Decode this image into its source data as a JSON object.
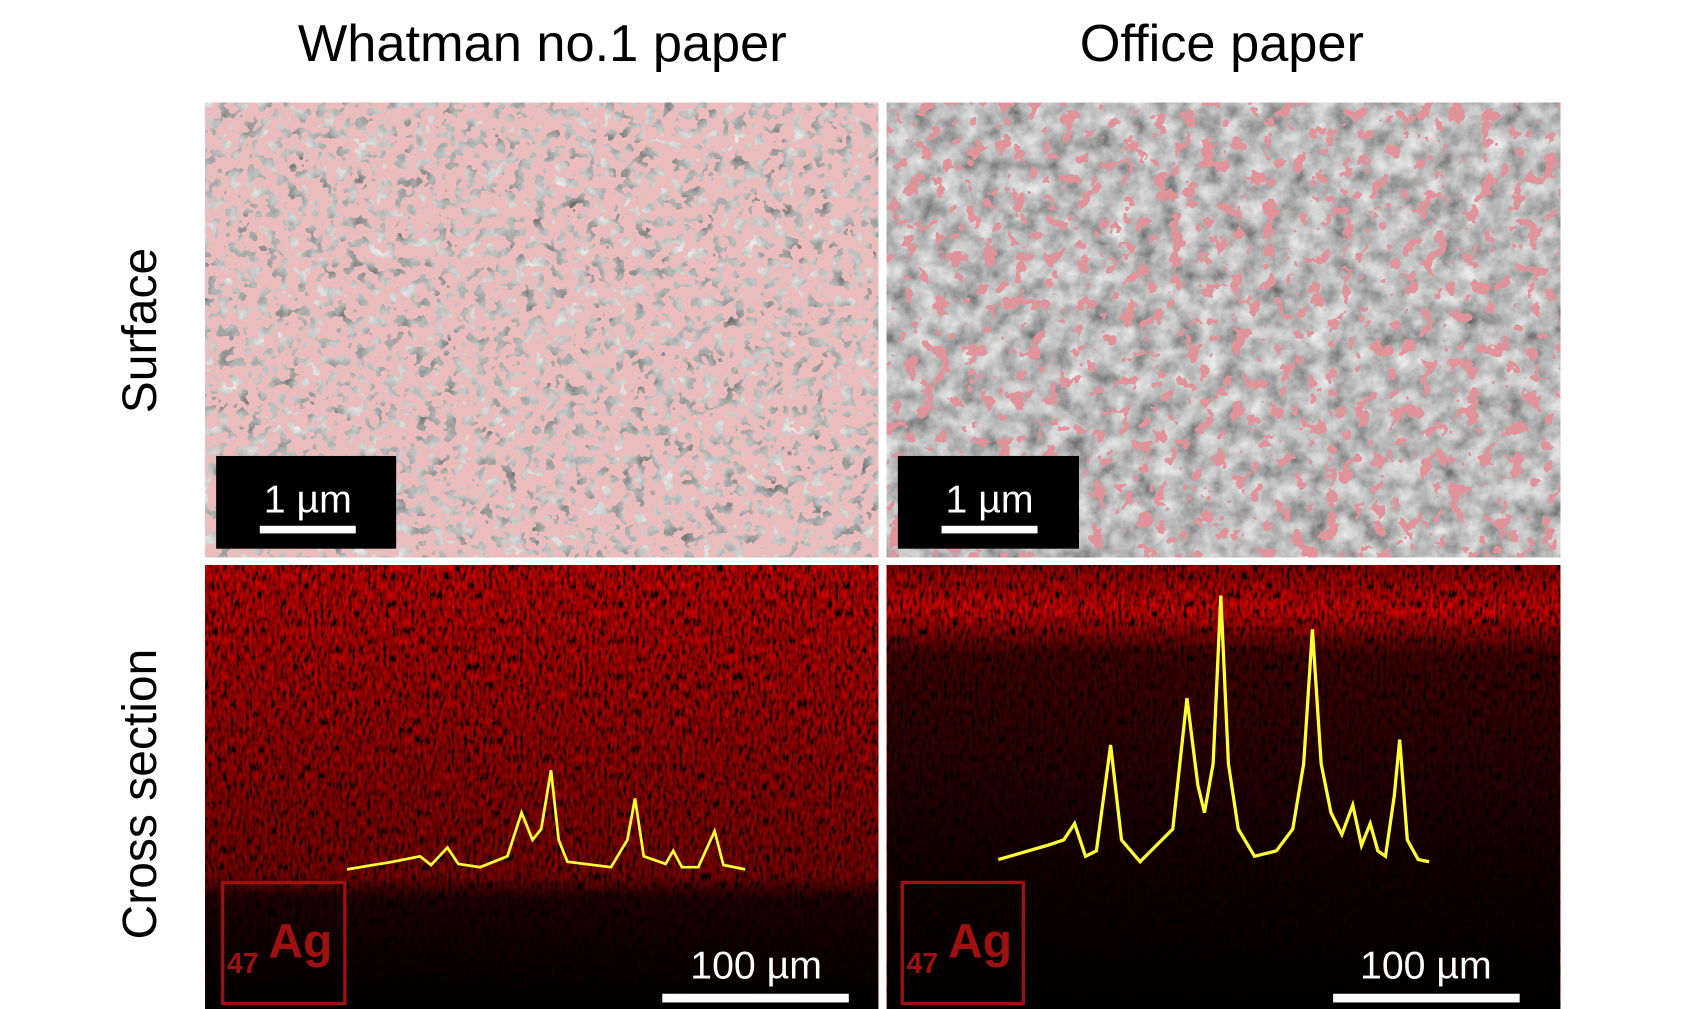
{
  "column_titles": [
    "Whatman no.1 paper",
    "Office paper"
  ],
  "row_labels": [
    "Surface",
    "Cross section"
  ],
  "panels": {
    "surface_left": {
      "scale_bar": "1 µm"
    },
    "surface_right": {
      "scale_bar": "1 µm"
    },
    "cross_left": {
      "scale_bar": "100 µm",
      "element": {
        "atomic_number": "47",
        "symbol": "Ag"
      }
    },
    "cross_right": {
      "scale_bar": "100 µm",
      "element": {
        "atomic_number": "47",
        "symbol": "Ag"
      }
    }
  }
}
